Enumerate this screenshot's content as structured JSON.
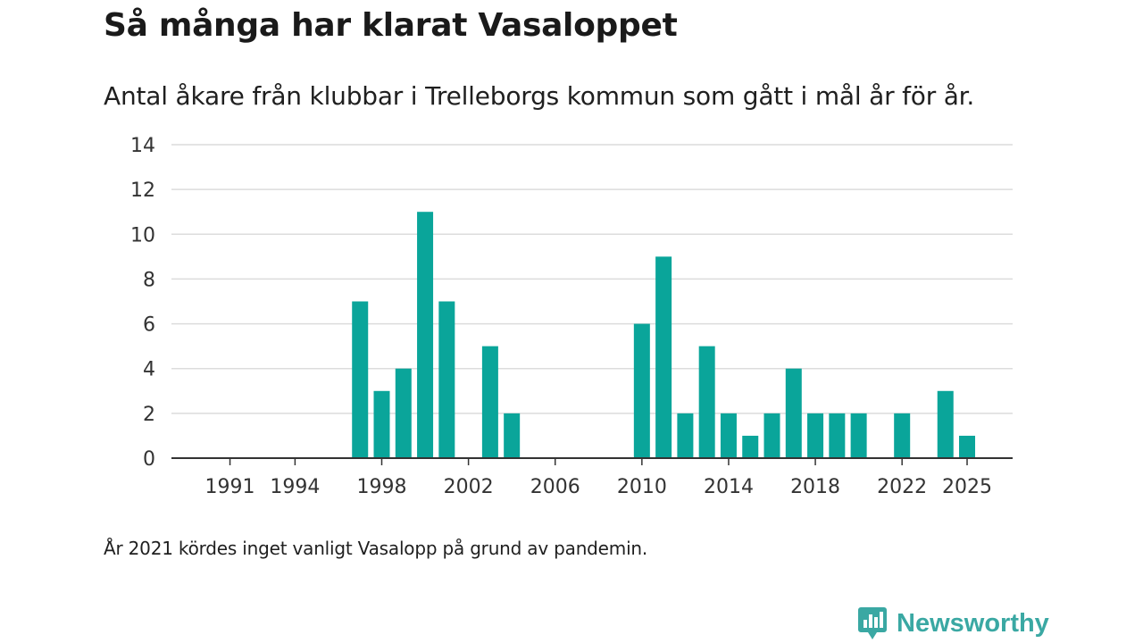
{
  "title": "Så många har klarat Vasaloppet",
  "subtitle": "Antal åkare från klubbar i Trelleborgs kommun som gått i mål år för år.",
  "note": "År 2021 kördes inget vanligt Vasalopp på grund av pandemin.",
  "brand": {
    "name": "Newsworthy",
    "icon": "newsworthy-logo-icon",
    "color": "#3aa8a3"
  },
  "chart_data": {
    "type": "bar",
    "title": "Så många har klarat Vasaloppet",
    "xlabel": "",
    "ylabel": "",
    "bar_color": "#0aa59a",
    "grid": true,
    "ylim": [
      0,
      14
    ],
    "yticks": [
      0,
      2,
      4,
      6,
      8,
      10,
      12,
      14
    ],
    "xlim": [
      1988.3,
      2027.1
    ],
    "xticks": [
      1991,
      1994,
      1998,
      2002,
      2006,
      2010,
      2014,
      2018,
      2022,
      2025
    ],
    "series": [
      {
        "name": "Antal åkare",
        "x": [
          1997,
          1998,
          1999,
          2000,
          2001,
          2003,
          2004,
          2010,
          2011,
          2012,
          2013,
          2014,
          2015,
          2016,
          2017,
          2018,
          2019,
          2020,
          2022,
          2024,
          2025
        ],
        "values": [
          7,
          3,
          4,
          11,
          7,
          5,
          2,
          6,
          9,
          2,
          5,
          2,
          1,
          2,
          4,
          2,
          2,
          2,
          2,
          3,
          1
        ]
      }
    ]
  }
}
